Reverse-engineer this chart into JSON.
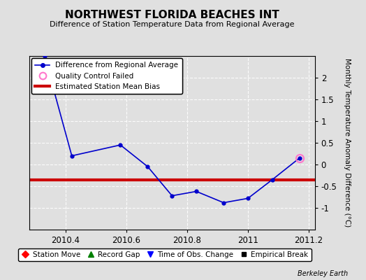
{
  "title": "NORTHWEST FLORIDA BEACHES INT",
  "subtitle": "Difference of Station Temperature Data from Regional Average",
  "ylabel": "Monthly Temperature Anomaly Difference (°C)",
  "xlabel_ticks": [
    "2010.4",
    "2010.6",
    "2010.8",
    "2011",
    "2011.2"
  ],
  "xlim": [
    2010.28,
    2011.22
  ],
  "ylim": [
    -1.5,
    2.5
  ],
  "yticks": [
    -1.0,
    -0.5,
    0.0,
    0.5,
    1.0,
    1.5,
    2.0
  ],
  "ytick_labels": [
    "-1",
    "-0.5",
    "0",
    "0.5",
    "1",
    "1.5",
    "2"
  ],
  "xticks": [
    2010.4,
    2010.6,
    2010.8,
    2011.0,
    2011.2
  ],
  "line_x": [
    2010.33,
    2010.42,
    2010.58,
    2010.67,
    2010.75,
    2010.83,
    2010.92,
    2011.0,
    2011.08,
    2011.17
  ],
  "line_y": [
    2.5,
    0.2,
    0.45,
    -0.05,
    -0.72,
    -0.62,
    -0.88,
    -0.78,
    -0.35,
    0.15
  ],
  "qc_failed_x": [
    2011.17
  ],
  "qc_failed_y": [
    0.15
  ],
  "bias_y": -0.35,
  "bias_x_start": 2010.28,
  "bias_x_end": 2011.22,
  "line_color": "#0000cc",
  "bias_color": "#cc0000",
  "qc_color": "#ff77cc",
  "bg_color": "#e0e0e0",
  "plot_bg_color": "#e0e0e0",
  "grid_color": "#ffffff",
  "watermark": "Berkeley Earth",
  "legend1_labels": [
    "Difference from Regional Average",
    "Quality Control Failed",
    "Estimated Station Mean Bias"
  ],
  "legend2_labels": [
    "Station Move",
    "Record Gap",
    "Time of Obs. Change",
    "Empirical Break"
  ]
}
